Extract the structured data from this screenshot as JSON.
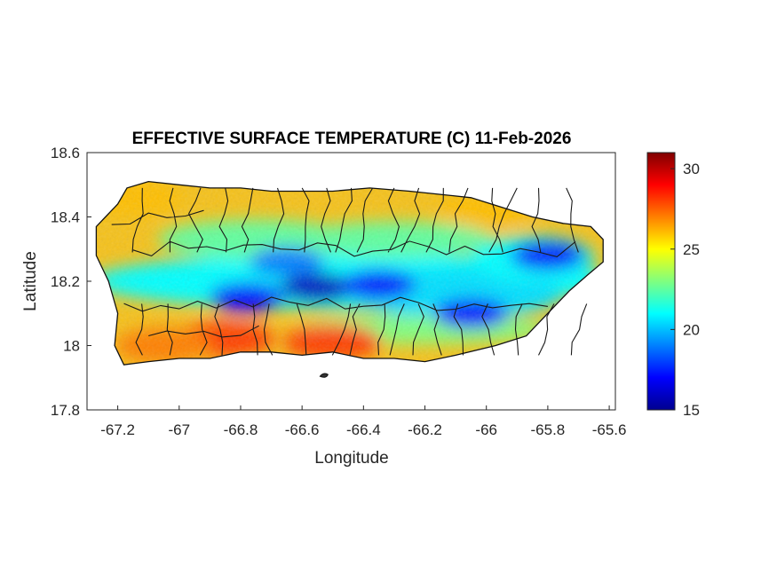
{
  "chart_data": {
    "type": "heatmap",
    "title": "EFFECTIVE SURFACE TEMPERATURE (C) 11-Feb-2026",
    "xlabel": "Longitude",
    "ylabel": "Latitude",
    "xlim": [
      -67.3,
      -65.58
    ],
    "ylim": [
      17.8,
      18.6
    ],
    "xticks": [
      -67.2,
      -67.0,
      -66.8,
      -66.6,
      -66.4,
      -66.2,
      -66.0,
      -65.8,
      -65.6
    ],
    "xtick_labels": [
      "-67.2",
      "-67",
      "-66.8",
      "-66.6",
      "-66.4",
      "-66.2",
      "-66",
      "-65.8",
      "-65.6"
    ],
    "yticks": [
      17.8,
      18.0,
      18.2,
      18.4,
      18.6
    ],
    "ytick_labels": [
      "17.8",
      "18",
      "18.2",
      "18.4",
      "18.6"
    ],
    "colorbar": {
      "colormap": "jet",
      "clim": [
        15,
        31
      ],
      "ticks": [
        15,
        20,
        25,
        30
      ],
      "tick_labels": [
        "15",
        "20",
        "25",
        "30"
      ]
    },
    "region": "Puerto Rico",
    "outline": [
      [
        -67.27,
        18.37
      ],
      [
        -67.24,
        18.4
      ],
      [
        -67.2,
        18.44
      ],
      [
        -67.17,
        18.49
      ],
      [
        -67.1,
        18.51
      ],
      [
        -67.0,
        18.5
      ],
      [
        -66.9,
        18.49
      ],
      [
        -66.8,
        18.49
      ],
      [
        -66.7,
        18.48
      ],
      [
        -66.6,
        18.48
      ],
      [
        -66.5,
        18.48
      ],
      [
        -66.38,
        18.49
      ],
      [
        -66.25,
        18.48
      ],
      [
        -66.15,
        18.47
      ],
      [
        -66.05,
        18.46
      ],
      [
        -65.95,
        18.43
      ],
      [
        -65.85,
        18.4
      ],
      [
        -65.75,
        18.38
      ],
      [
        -65.66,
        18.37
      ],
      [
        -65.62,
        18.33
      ],
      [
        -65.62,
        18.26
      ],
      [
        -65.67,
        18.22
      ],
      [
        -65.73,
        18.17
      ],
      [
        -65.8,
        18.1
      ],
      [
        -65.87,
        18.03
      ],
      [
        -65.97,
        18.0
      ],
      [
        -66.1,
        17.97
      ],
      [
        -66.2,
        17.95
      ],
      [
        -66.3,
        17.96
      ],
      [
        -66.4,
        17.96
      ],
      [
        -66.5,
        17.98
      ],
      [
        -66.6,
        17.97
      ],
      [
        -66.7,
        17.98
      ],
      [
        -66.8,
        17.98
      ],
      [
        -66.9,
        17.96
      ],
      [
        -67.0,
        17.96
      ],
      [
        -67.1,
        17.95
      ],
      [
        -67.18,
        17.94
      ],
      [
        -67.21,
        18.0
      ],
      [
        -67.2,
        18.1
      ],
      [
        -67.23,
        18.2
      ],
      [
        -67.27,
        18.28
      ],
      [
        -67.27,
        18.37
      ]
    ],
    "temperature_features": [
      {
        "kind": "cold",
        "lon": -66.55,
        "lat": 18.18,
        "value": 16
      },
      {
        "kind": "cold",
        "lon": -66.78,
        "lat": 18.15,
        "value": 17
      },
      {
        "kind": "cold",
        "lon": -66.35,
        "lat": 18.19,
        "value": 17
      },
      {
        "kind": "cold",
        "lon": -66.05,
        "lat": 18.1,
        "value": 17
      },
      {
        "kind": "cold",
        "lon": -65.8,
        "lat": 18.28,
        "value": 17
      },
      {
        "kind": "cold",
        "lon": -66.65,
        "lat": 18.26,
        "value": 19
      },
      {
        "kind": "warm",
        "lon": -66.85,
        "lat": 18.02,
        "value": 28
      },
      {
        "kind": "warm",
        "lon": -66.5,
        "lat": 18.01,
        "value": 28
      },
      {
        "kind": "warm",
        "lon": -67.05,
        "lat": 18.0,
        "value": 27
      },
      {
        "kind": "warm",
        "lon": -67.15,
        "lat": 18.46,
        "value": 26
      },
      {
        "kind": "warm",
        "lon": -66.0,
        "lat": 18.42,
        "value": 26
      }
    ]
  }
}
